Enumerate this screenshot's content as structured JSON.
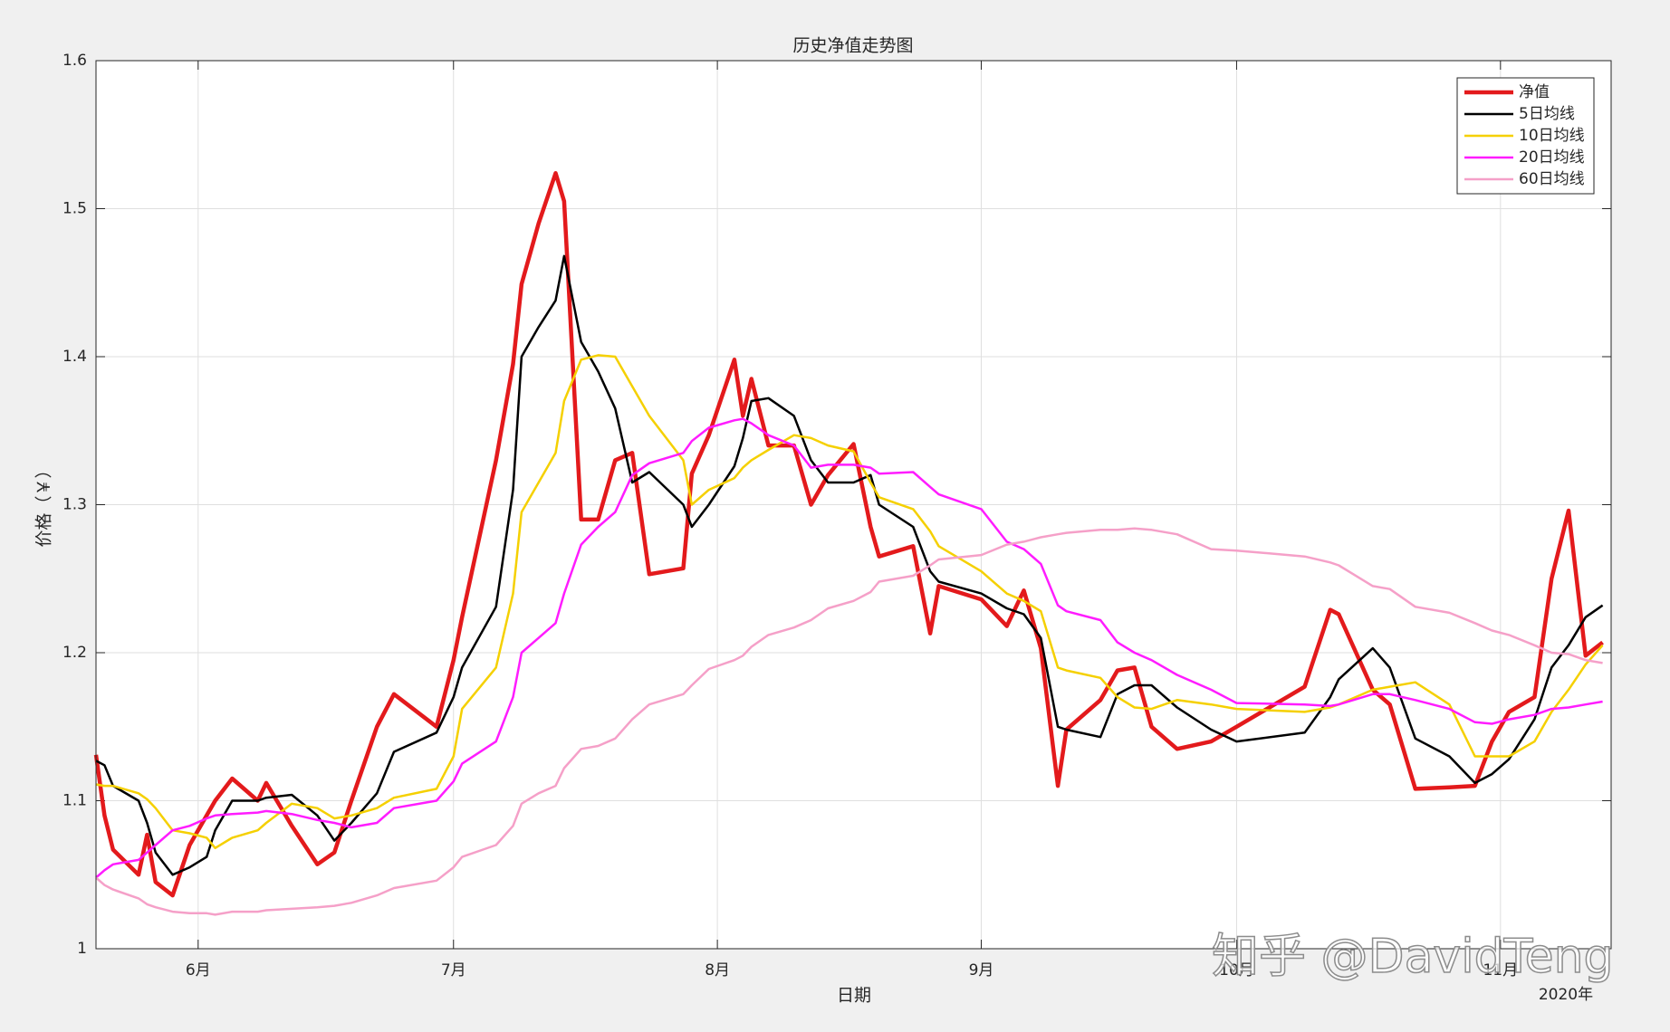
{
  "chart_data": {
    "type": "line",
    "title": "历史净值走势图",
    "xlabel": "日期",
    "ylabel": "价格（￥）",
    "x_secondary_label": "2020年",
    "watermark": "知乎 @DavidTeng",
    "xlim": [
      141,
      319
    ],
    "xticks": [
      {
        "value": 153,
        "label": "6月"
      },
      {
        "value": 183,
        "label": "7月"
      },
      {
        "value": 214,
        "label": "8月"
      },
      {
        "value": 245,
        "label": "9月"
      },
      {
        "value": 275,
        "label": "10月"
      },
      {
        "value": 306,
        "label": "11月"
      }
    ],
    "ylim": [
      1,
      1.6
    ],
    "yticks": [
      1,
      1.1,
      1.2,
      1.3,
      1.4,
      1.5,
      1.6
    ],
    "grid": true,
    "legend": "top-right",
    "x": [
      141,
      142,
      143,
      146,
      147,
      148,
      150,
      152,
      154,
      155,
      157,
      160,
      161,
      164,
      167,
      169,
      171,
      174,
      176,
      181,
      183,
      184,
      188,
      190,
      191,
      193,
      195,
      196,
      198,
      200,
      202,
      204,
      206,
      210,
      211,
      213,
      216,
      217,
      218,
      220,
      223,
      225,
      227,
      230,
      232,
      233,
      237,
      239,
      240,
      245,
      248,
      250,
      252,
      254,
      255,
      259,
      261,
      263,
      265,
      268,
      272,
      275,
      283,
      286,
      287,
      291,
      293,
      296,
      300,
      303,
      305,
      307,
      310,
      312,
      314,
      316,
      318
    ],
    "series": [
      {
        "name": "净值",
        "color": "#e31a1c",
        "width": 4.5,
        "values": [
          1.131,
          1.09,
          1.067,
          1.05,
          1.077,
          1.045,
          1.036,
          1.07,
          1.09,
          1.1,
          1.115,
          1.1,
          1.112,
          1.083,
          1.057,
          1.065,
          1.1,
          1.15,
          1.172,
          1.15,
          1.195,
          1.224,
          1.33,
          1.395,
          1.449,
          1.49,
          1.524,
          1.505,
          1.29,
          1.29,
          1.33,
          1.335,
          1.253,
          1.257,
          1.321,
          1.347,
          1.398,
          1.36,
          1.385,
          1.34,
          1.34,
          1.3,
          1.32,
          1.341,
          1.285,
          1.265,
          1.272,
          1.213,
          1.245,
          1.236,
          1.218,
          1.242,
          1.203,
          1.11,
          1.148,
          1.168,
          1.188,
          1.19,
          1.15,
          1.135,
          1.14,
          1.15,
          1.177,
          1.229,
          1.226,
          1.175,
          1.165,
          1.108,
          1.109,
          1.11,
          1.14,
          1.16,
          1.17,
          1.25,
          1.296,
          1.198,
          1.207
        ]
      },
      {
        "name": "5日均线",
        "color": "#000000",
        "width": 2.5,
        "values": [
          1.127,
          1.124,
          1.11,
          1.1,
          1.085,
          1.065,
          1.05,
          1.055,
          1.062,
          1.08,
          1.1,
          1.1,
          1.102,
          1.104,
          1.09,
          1.073,
          1.085,
          1.105,
          1.133,
          1.146,
          1.17,
          1.19,
          1.231,
          1.31,
          1.4,
          1.42,
          1.438,
          1.468,
          1.41,
          1.39,
          1.365,
          1.315,
          1.322,
          1.3,
          1.285,
          1.3,
          1.326,
          1.345,
          1.37,
          1.372,
          1.36,
          1.33,
          1.315,
          1.315,
          1.32,
          1.3,
          1.285,
          1.255,
          1.248,
          1.24,
          1.23,
          1.226,
          1.21,
          1.15,
          1.148,
          1.143,
          1.172,
          1.178,
          1.178,
          1.163,
          1.148,
          1.14,
          1.146,
          1.17,
          1.182,
          1.203,
          1.19,
          1.142,
          1.13,
          1.112,
          1.118,
          1.128,
          1.155,
          1.19,
          1.205,
          1.224,
          1.232
        ]
      },
      {
        "name": "10日均线",
        "color": "#f5d000",
        "width": 2.5,
        "values": [
          1.111,
          1.11,
          1.11,
          1.105,
          1.101,
          1.095,
          1.08,
          1.078,
          1.075,
          1.068,
          1.075,
          1.08,
          1.085,
          1.098,
          1.095,
          1.088,
          1.09,
          1.095,
          1.102,
          1.108,
          1.13,
          1.162,
          1.19,
          1.24,
          1.295,
          1.315,
          1.335,
          1.37,
          1.398,
          1.401,
          1.4,
          1.38,
          1.36,
          1.33,
          1.3,
          1.31,
          1.318,
          1.325,
          1.33,
          1.337,
          1.347,
          1.345,
          1.34,
          1.336,
          1.315,
          1.305,
          1.297,
          1.282,
          1.272,
          1.255,
          1.24,
          1.235,
          1.228,
          1.19,
          1.188,
          1.183,
          1.17,
          1.163,
          1.162,
          1.168,
          1.165,
          1.162,
          1.16,
          1.163,
          1.165,
          1.175,
          1.177,
          1.18,
          1.165,
          1.13,
          1.13,
          1.13,
          1.14,
          1.16,
          1.175,
          1.192,
          1.205
        ]
      },
      {
        "name": "20日均线",
        "color": "#ff1cff",
        "width": 2.5,
        "values": [
          1.048,
          1.053,
          1.057,
          1.06,
          1.065,
          1.07,
          1.08,
          1.083,
          1.088,
          1.09,
          1.091,
          1.092,
          1.093,
          1.091,
          1.087,
          1.085,
          1.082,
          1.085,
          1.095,
          1.1,
          1.113,
          1.125,
          1.14,
          1.17,
          1.2,
          1.21,
          1.22,
          1.24,
          1.273,
          1.285,
          1.295,
          1.32,
          1.328,
          1.335,
          1.343,
          1.352,
          1.357,
          1.358,
          1.355,
          1.347,
          1.34,
          1.325,
          1.327,
          1.327,
          1.325,
          1.321,
          1.322,
          1.312,
          1.307,
          1.297,
          1.275,
          1.27,
          1.26,
          1.232,
          1.228,
          1.222,
          1.207,
          1.2,
          1.195,
          1.185,
          1.175,
          1.166,
          1.165,
          1.164,
          1.165,
          1.172,
          1.172,
          1.168,
          1.162,
          1.153,
          1.152,
          1.155,
          1.158,
          1.162,
          1.163,
          1.165,
          1.167
        ]
      },
      {
        "name": "60日均线",
        "color": "#f5a0c8",
        "width": 2.5,
        "values": [
          1.048,
          1.043,
          1.04,
          1.034,
          1.03,
          1.028,
          1.025,
          1.024,
          1.024,
          1.023,
          1.025,
          1.025,
          1.026,
          1.027,
          1.028,
          1.029,
          1.031,
          1.036,
          1.041,
          1.046,
          1.055,
          1.062,
          1.07,
          1.083,
          1.098,
          1.105,
          1.11,
          1.122,
          1.135,
          1.137,
          1.142,
          1.155,
          1.165,
          1.172,
          1.178,
          1.189,
          1.195,
          1.198,
          1.204,
          1.212,
          1.217,
          1.222,
          1.23,
          1.235,
          1.241,
          1.248,
          1.252,
          1.259,
          1.263,
          1.266,
          1.273,
          1.275,
          1.278,
          1.28,
          1.281,
          1.283,
          1.283,
          1.284,
          1.283,
          1.28,
          1.27,
          1.269,
          1.265,
          1.261,
          1.259,
          1.245,
          1.243,
          1.231,
          1.227,
          1.22,
          1.215,
          1.212,
          1.205,
          1.2,
          1.199,
          1.195,
          1.193
        ]
      }
    ]
  }
}
